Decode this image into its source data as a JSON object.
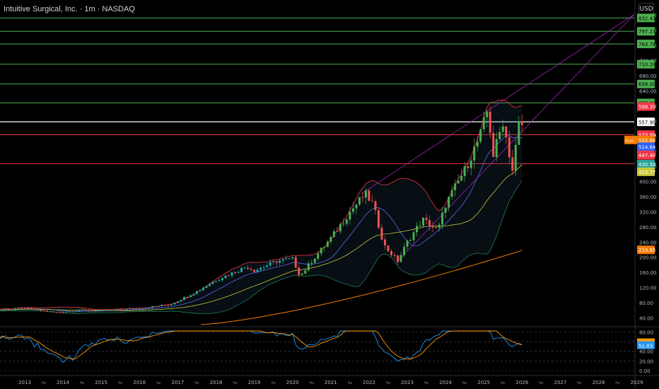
{
  "header": {
    "title": "Intuitive Surgical, Inc. · 1m · NASDAQ",
    "currency": "USD"
  },
  "colors": {
    "background": "#000000",
    "up": "#26a69a",
    "up_alt": "#4caf50",
    "down": "#ef5350",
    "hline_green": "#4caf50",
    "hline_red": "#f23645",
    "hline_white": "#ffffff",
    "fan": "#9c27b0",
    "ma_fast": "#5b6cf0",
    "ma_mid": "#c9c93a",
    "ma_slow": "#f57c00",
    "bb": "#f23645",
    "bb_lower": "#1e7d5a",
    "rsi": "#2196f3",
    "rsi_signal": "#ff9800"
  },
  "chart_data": {
    "type": "candlestick",
    "x_axis": {
      "year_labels": [
        "2013",
        "2014",
        "2015",
        "2016",
        "2017",
        "2018",
        "2019",
        "2020",
        "2021",
        "2022",
        "2023",
        "2024",
        "2025",
        "2026",
        "2027",
        "2028",
        "2029",
        "20"
      ],
      "mid_marker": "יולי"
    },
    "y_axis": {
      "ticks": [
        840,
        800,
        760,
        720,
        680,
        640,
        600,
        560,
        520,
        480,
        440,
        400,
        360,
        320,
        280,
        240,
        200,
        160,
        120,
        80,
        40
      ],
      "ylim": [
        20,
        850
      ]
    },
    "horizontal_levels": [
      {
        "value": 832.41,
        "label": "832.41",
        "color": "green"
      },
      {
        "value": 797.27,
        "label": "797.27",
        "color": "green"
      },
      {
        "value": 763.78,
        "label": "763.78",
        "color": "green"
      },
      {
        "value": 710.28,
        "label": "710.28",
        "color": "green"
      },
      {
        "value": 658.0,
        "label": "658.00",
        "color": "green"
      },
      {
        "value": 607.92,
        "label": "607.92",
        "color": "green"
      },
      {
        "value": 557.9,
        "label": "557.90",
        "color": "white"
      },
      {
        "value": 523.99,
        "label": "523.99",
        "color": "red"
      },
      {
        "value": 447.4,
        "label": "447.40",
        "color": "red"
      }
    ],
    "price_badges": [
      {
        "label": "598.35",
        "value": 598.35,
        "color": "#f23645"
      },
      {
        "label": "523.99",
        "sub": "4d 12h",
        "value": 523.99,
        "color": "#f23645"
      },
      {
        "label": "522.80",
        "prefix": "נוכחי",
        "value": 510.0,
        "color": "#f57c00"
      },
      {
        "label": "514.64",
        "value": 492.0,
        "color": "#2962ff"
      },
      {
        "label": "447.40",
        "value": 470.5,
        "color": "#f23645"
      },
      {
        "label": "430.92",
        "value": 446.0,
        "color": "#26a69a"
      },
      {
        "label": "410.77",
        "value": 426.0,
        "color": "#c9c93a"
      },
      {
        "label": "219.65",
        "value": 219.65,
        "color": "#f57c00"
      }
    ],
    "candles_yearly_close": [
      {
        "year": 2013,
        "close": 65
      },
      {
        "year": 2014,
        "close": 58
      },
      {
        "year": 2015,
        "close": 62
      },
      {
        "year": 2016,
        "close": 72
      },
      {
        "year": 2017,
        "close": 110
      },
      {
        "year": 2018,
        "close": 165
      },
      {
        "year": 2019,
        "close": 195
      },
      {
        "year": 2020,
        "close": 200
      },
      {
        "year": 2021,
        "close": 355
      },
      {
        "year": 2022,
        "close": 270
      },
      {
        "year": 2023,
        "close": 335
      },
      {
        "year": 2024,
        "close": 520
      },
      {
        "year": 2025,
        "close": 565
      },
      {
        "year": 2026,
        "close": 523.99
      }
    ],
    "rsi": {
      "levels": [
        80,
        60,
        40,
        20,
        0
      ],
      "tick_labels": [
        "80.00",
        "60.00",
        "40.00",
        "20.00",
        "0.00"
      ],
      "current_badges": [
        {
          "label": "57.88",
          "value": 57.88,
          "color": "#ff9800"
        },
        {
          "label": "51.83",
          "value": 51.83,
          "color": "#2196f3"
        }
      ]
    }
  }
}
